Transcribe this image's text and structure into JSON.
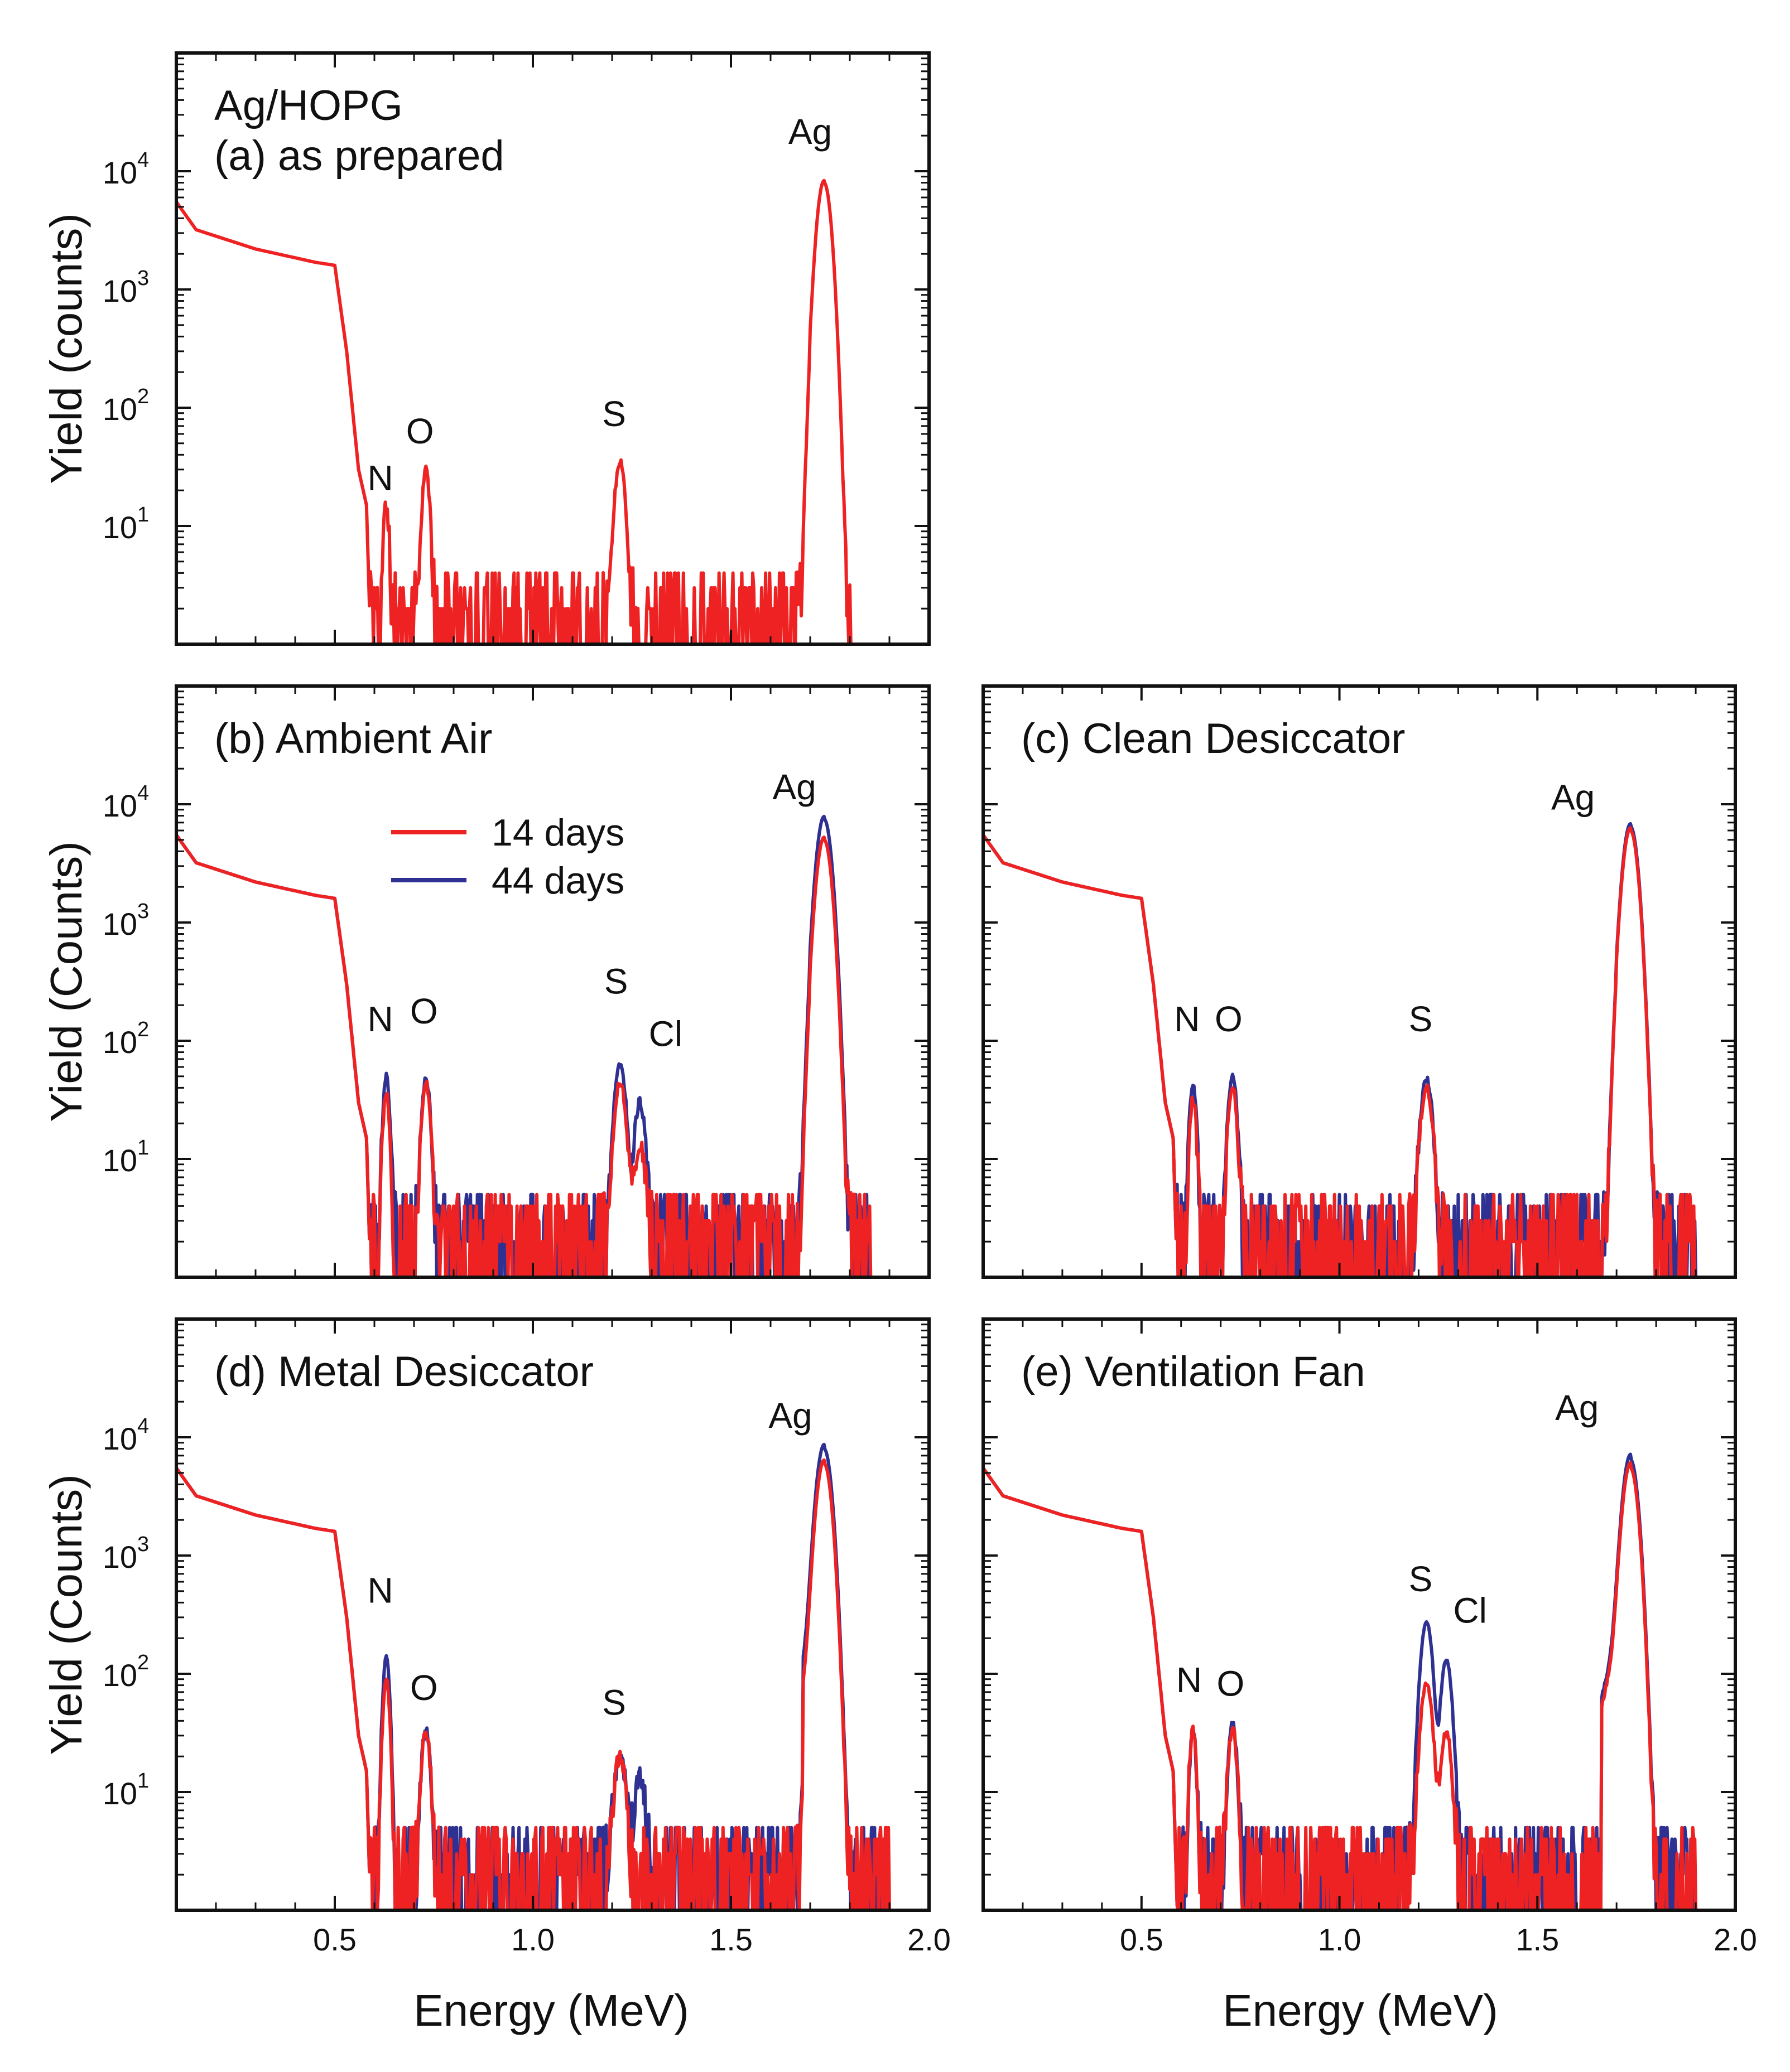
{
  "figure": {
    "xlabel": "Energy (MeV)",
    "colors": {
      "red": "#ee2222",
      "blue": "#2e3192",
      "axis": "#111111"
    }
  },
  "chart_data": [
    {
      "id": "a",
      "type": "line",
      "title_lines": [
        "Ag/HOPG",
        "(a) as prepared"
      ],
      "ylabel": "Yield (counts)",
      "xlim": [
        0.1,
        2.0
      ],
      "ylim_log": [
        1,
        100000
      ],
      "x_ticks": [
        "0.5",
        "1.0",
        "1.5",
        "2.0"
      ],
      "y_ticks": [
        {
          "base": "10",
          "exp": "1"
        },
        {
          "base": "10",
          "exp": "2"
        },
        {
          "base": "10",
          "exp": "3"
        },
        {
          "base": "10",
          "exp": "4"
        }
      ],
      "show_x_tick_labels": false,
      "legend": [],
      "series": [
        {
          "name": "as prepared",
          "color": "red",
          "continuum": [
            [
              0.1,
              5500
            ],
            [
              0.15,
              3200
            ],
            [
              0.3,
              2200
            ],
            [
              0.45,
              1700
            ],
            [
              0.5,
              1600
            ],
            [
              0.53,
              300
            ],
            [
              0.56,
              30
            ],
            [
              0.58,
              15
            ],
            [
              0.59,
              1.1
            ]
          ],
          "peaks": [
            [
              0.63,
              13,
              0.006
            ],
            [
              0.73,
              28,
              0.008
            ],
            [
              1.22,
              33,
              0.011
            ],
            [
              1.735,
              8000,
              0.014
            ]
          ],
          "tail_ref": 1.7,
          "tail_amp": 0.12,
          "noise": 4,
          "noise_lo": 0.59,
          "noise_hi": 1.8,
          "seed": 11
        }
      ],
      "annotations": [
        {
          "text": "N",
          "x": 0.615,
          "y": 20
        },
        {
          "text": "O",
          "x": 0.715,
          "y": 50
        },
        {
          "text": "S",
          "x": 1.205,
          "y": 70
        },
        {
          "text": "Ag",
          "x": 1.7,
          "y": 17000
        }
      ]
    },
    {
      "id": "b",
      "type": "line",
      "title_lines": [
        "(b) Ambient Air"
      ],
      "ylabel": "Yield (Counts)",
      "xlim": [
        0.1,
        2.0
      ],
      "ylim_log": [
        1,
        100000
      ],
      "x_ticks": [
        "0.5",
        "1.0",
        "1.5",
        "2.0"
      ],
      "y_ticks": [
        {
          "base": "10",
          "exp": "1"
        },
        {
          "base": "10",
          "exp": "2"
        },
        {
          "base": "10",
          "exp": "3"
        },
        {
          "base": "10",
          "exp": "4"
        }
      ],
      "show_x_tick_labels": false,
      "legend": [
        {
          "label": "14 days",
          "color": "red"
        },
        {
          "label": "44 days",
          "color": "blue"
        }
      ],
      "series": [
        {
          "name": "44 days",
          "color": "blue",
          "continuum": [
            [
              0.1,
              5500
            ],
            [
              0.15,
              3200
            ],
            [
              0.3,
              2200
            ],
            [
              0.45,
              1700
            ],
            [
              0.5,
              1600
            ],
            [
              0.53,
              300
            ],
            [
              0.56,
              30
            ],
            [
              0.58,
              15
            ],
            [
              0.59,
              1.1
            ]
          ],
          "peaks": [
            [
              0.63,
              48,
              0.007
            ],
            [
              0.73,
              45,
              0.009
            ],
            [
              1.22,
              60,
              0.012
            ],
            [
              1.27,
              28,
              0.011
            ],
            [
              1.735,
              7500,
              0.015
            ]
          ],
          "tail_ref": 1.7,
          "tail_amp": 0.15,
          "noise": 5,
          "noise_lo": 0.59,
          "noise_hi": 1.85,
          "seed": 21
        },
        {
          "name": "14 days",
          "color": "red",
          "continuum": [
            [
              0.1,
              5500
            ],
            [
              0.15,
              3200
            ],
            [
              0.3,
              2200
            ],
            [
              0.45,
              1700
            ],
            [
              0.5,
              1600
            ],
            [
              0.53,
              300
            ],
            [
              0.56,
              30
            ],
            [
              0.58,
              15
            ],
            [
              0.59,
              1.1
            ]
          ],
          "peaks": [
            [
              0.63,
              35,
              0.007
            ],
            [
              0.73,
              42,
              0.009
            ],
            [
              1.22,
              42,
              0.012
            ],
            [
              1.27,
              12,
              0.011
            ],
            [
              1.735,
              5000,
              0.015
            ]
          ],
          "tail_ref": 1.7,
          "tail_amp": 0.15,
          "noise": 5,
          "noise_lo": 0.59,
          "noise_hi": 1.85,
          "seed": 22
        }
      ],
      "annotations": [
        {
          "text": "N",
          "x": 0.615,
          "y": 120
        },
        {
          "text": "O",
          "x": 0.725,
          "y": 140
        },
        {
          "text": "S",
          "x": 1.21,
          "y": 250
        },
        {
          "text": "Cl",
          "x": 1.335,
          "y": 90
        },
        {
          "text": "Ag",
          "x": 1.66,
          "y": 11000
        }
      ]
    },
    {
      "id": "c",
      "type": "line",
      "title_lines": [
        "(c) Clean Desiccator"
      ],
      "ylabel": "",
      "xlim": [
        0.1,
        2.0
      ],
      "ylim_log": [
        1,
        100000
      ],
      "x_ticks": [
        "0.5",
        "1.0",
        "1.5",
        "2.0"
      ],
      "y_ticks": [],
      "show_x_tick_labels": false,
      "legend": [],
      "series": [
        {
          "name": "44 days",
          "color": "blue",
          "continuum": [
            [
              0.1,
              5500
            ],
            [
              0.15,
              3200
            ],
            [
              0.3,
              2200
            ],
            [
              0.45,
              1700
            ],
            [
              0.5,
              1600
            ],
            [
              0.53,
              300
            ],
            [
              0.56,
              30
            ],
            [
              0.58,
              15
            ],
            [
              0.59,
              1.1
            ]
          ],
          "peaks": [
            [
              0.63,
              42,
              0.007
            ],
            [
              0.73,
              50,
              0.009
            ],
            [
              1.22,
              45,
              0.012
            ],
            [
              1.735,
              6500,
              0.015
            ]
          ],
          "tail_ref": 1.7,
          "tail_amp": 0.15,
          "noise": 5,
          "noise_lo": 0.59,
          "noise_hi": 1.9,
          "seed": 31
        },
        {
          "name": "14 days",
          "color": "red",
          "continuum": [
            [
              0.1,
              5500
            ],
            [
              0.15,
              3200
            ],
            [
              0.3,
              2200
            ],
            [
              0.45,
              1700
            ],
            [
              0.5,
              1600
            ],
            [
              0.53,
              300
            ],
            [
              0.56,
              30
            ],
            [
              0.58,
              15
            ],
            [
              0.59,
              1.1
            ]
          ],
          "peaks": [
            [
              0.63,
              30,
              0.007
            ],
            [
              0.73,
              40,
              0.009
            ],
            [
              1.22,
              38,
              0.012
            ],
            [
              1.735,
              6000,
              0.015
            ]
          ],
          "tail_ref": 1.7,
          "tail_amp": 0.15,
          "noise": 5,
          "noise_lo": 0.59,
          "noise_hi": 1.9,
          "seed": 32
        }
      ],
      "annotations": [
        {
          "text": "N",
          "x": 0.615,
          "y": 120
        },
        {
          "text": "O",
          "x": 0.72,
          "y": 120
        },
        {
          "text": "S",
          "x": 1.205,
          "y": 120
        },
        {
          "text": "Ag",
          "x": 1.59,
          "y": 9000
        }
      ]
    },
    {
      "id": "d",
      "type": "line",
      "title_lines": [
        "(d) Metal Desiccator"
      ],
      "ylabel": "Yield (Counts)",
      "xlim": [
        0.1,
        2.0
      ],
      "ylim_log": [
        1,
        100000
      ],
      "x_ticks": [
        "0.5",
        "1.0",
        "1.5",
        "2.0"
      ],
      "y_ticks": [
        {
          "base": "10",
          "exp": "1"
        },
        {
          "base": "10",
          "exp": "2"
        },
        {
          "base": "10",
          "exp": "3"
        },
        {
          "base": "10",
          "exp": "4"
        }
      ],
      "show_x_tick_labels": true,
      "legend": [],
      "series": [
        {
          "name": "44 days",
          "color": "blue",
          "continuum": [
            [
              0.1,
              5500
            ],
            [
              0.15,
              3200
            ],
            [
              0.3,
              2200
            ],
            [
              0.45,
              1700
            ],
            [
              0.5,
              1600
            ],
            [
              0.53,
              300
            ],
            [
              0.56,
              30
            ],
            [
              0.58,
              15
            ],
            [
              0.59,
              1.1
            ]
          ],
          "peaks": [
            [
              0.63,
              140,
              0.007
            ],
            [
              0.73,
              32,
              0.009
            ],
            [
              1.22,
              18,
              0.012
            ],
            [
              1.27,
              12,
              0.011
            ],
            [
              1.735,
              8000,
              0.015
            ]
          ],
          "tail_ref": 1.68,
          "tail_amp": 0.25,
          "noise": 5,
          "noise_lo": 0.59,
          "noise_hi": 1.9,
          "seed": 41
        },
        {
          "name": "14 days",
          "color": "red",
          "continuum": [
            [
              0.1,
              5500
            ],
            [
              0.15,
              3200
            ],
            [
              0.3,
              2200
            ],
            [
              0.45,
              1700
            ],
            [
              0.5,
              1600
            ],
            [
              0.53,
              300
            ],
            [
              0.56,
              30
            ],
            [
              0.58,
              15
            ],
            [
              0.59,
              1.1
            ]
          ],
          "peaks": [
            [
              0.63,
              90,
              0.007
            ],
            [
              0.73,
              30,
              0.009
            ],
            [
              1.22,
              18,
              0.012
            ],
            [
              1.735,
              6000,
              0.015
            ]
          ],
          "tail_ref": 1.68,
          "tail_amp": 0.2,
          "noise": 5,
          "noise_lo": 0.59,
          "noise_hi": 1.9,
          "seed": 42
        }
      ],
      "annotations": [
        {
          "text": "N",
          "x": 0.615,
          "y": 400
        },
        {
          "text": "O",
          "x": 0.725,
          "y": 60
        },
        {
          "text": "S",
          "x": 1.205,
          "y": 45
        },
        {
          "text": "Ag",
          "x": 1.65,
          "y": 12000
        }
      ]
    },
    {
      "id": "e",
      "type": "line",
      "title_lines": [
        "(e) Ventilation Fan"
      ],
      "ylabel": "",
      "xlim": [
        0.1,
        2.0
      ],
      "ylim_log": [
        1,
        100000
      ],
      "x_ticks": [
        "0.5",
        "1.0",
        "1.5",
        "2.0"
      ],
      "y_ticks": [],
      "show_x_tick_labels": true,
      "legend": [],
      "series": [
        {
          "name": "44 days",
          "color": "blue",
          "continuum": [
            [
              0.1,
              5500
            ],
            [
              0.15,
              3200
            ],
            [
              0.3,
              2200
            ],
            [
              0.45,
              1700
            ],
            [
              0.5,
              1600
            ],
            [
              0.53,
              300
            ],
            [
              0.56,
              30
            ],
            [
              0.58,
              15
            ],
            [
              0.59,
              1.1
            ]
          ],
          "peaks": [
            [
              0.63,
              30,
              0.007
            ],
            [
              0.73,
              35,
              0.009
            ],
            [
              1.22,
              270,
              0.012
            ],
            [
              1.27,
              130,
              0.011
            ],
            [
              1.735,
              6500,
              0.015
            ]
          ],
          "tail_ref": 1.66,
          "tail_amp": 0.3,
          "noise": 5,
          "noise_lo": 0.59,
          "noise_hi": 1.9,
          "seed": 51
        },
        {
          "name": "14 days",
          "color": "red",
          "continuum": [
            [
              0.1,
              5500
            ],
            [
              0.15,
              3200
            ],
            [
              0.3,
              2200
            ],
            [
              0.45,
              1700
            ],
            [
              0.5,
              1600
            ],
            [
              0.53,
              300
            ],
            [
              0.56,
              30
            ],
            [
              0.58,
              15
            ],
            [
              0.59,
              1.1
            ]
          ],
          "peaks": [
            [
              0.63,
              32,
              0.007
            ],
            [
              0.73,
              32,
              0.009
            ],
            [
              1.22,
              80,
              0.012
            ],
            [
              1.27,
              30,
              0.011
            ],
            [
              1.735,
              5500,
              0.015
            ]
          ],
          "tail_ref": 1.66,
          "tail_amp": 0.3,
          "noise": 5,
          "noise_lo": 0.59,
          "noise_hi": 1.9,
          "seed": 52
        }
      ],
      "annotations": [
        {
          "text": "N",
          "x": 0.62,
          "y": 70
        },
        {
          "text": "O",
          "x": 0.725,
          "y": 65
        },
        {
          "text": "S",
          "x": 1.205,
          "y": 500
        },
        {
          "text": "Cl",
          "x": 1.33,
          "y": 270
        },
        {
          "text": "Ag",
          "x": 1.6,
          "y": 14000
        }
      ]
    }
  ]
}
